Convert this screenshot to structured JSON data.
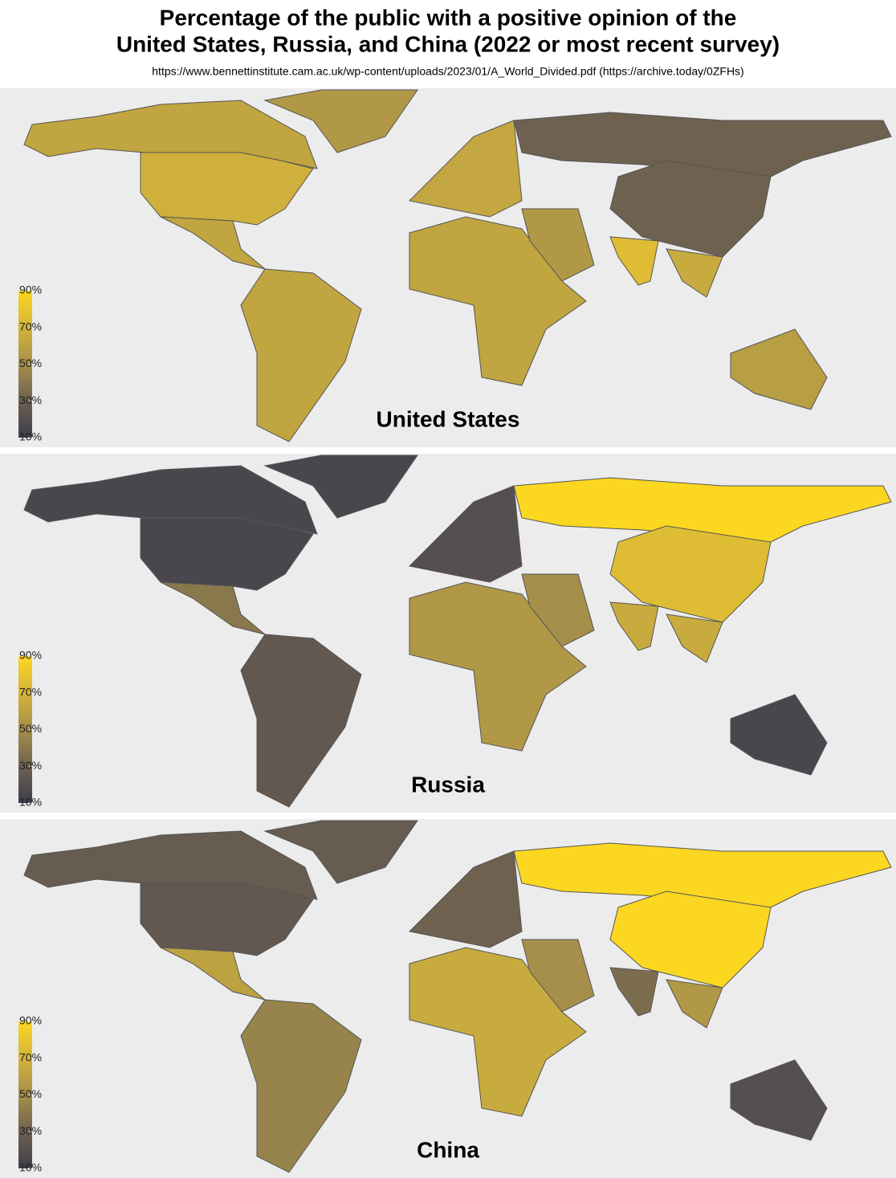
{
  "title": [
    "Percentage of the public with a positive opinion of the",
    "United States, Russia, and China (2022 or most recent survey)"
  ],
  "source": "https://www.bennettinstitute.cam.ac.uk/wp-content/uploads/2023/01/A_World_Divided.pdf (https://archive.today/0ZFHs)",
  "chart_data": [
    {
      "type": "choropleth",
      "title": "United States",
      "values": [
        62,
        68,
        62,
        62,
        55,
        63,
        62,
        55,
        30,
        30,
        75,
        65,
        58
      ],
      "clim": [
        10,
        90
      ],
      "colormap": [
        "#3e3d4d",
        "#6e6150",
        "#a58f4a",
        "#d4b43a",
        "#fbd721"
      ],
      "ticks": [
        {
          "value": 90,
          "label": "90%"
        },
        {
          "value": 70,
          "label": "70%"
        },
        {
          "value": 50,
          "label": "50%"
        },
        {
          "value": 30,
          "label": "30%"
        },
        {
          "value": 10,
          "label": "10%"
        }
      ]
    },
    {
      "type": "choropleth",
      "title": "Russia",
      "values": [
        15,
        15,
        40,
        25,
        15,
        20,
        55,
        50,
        90,
        75,
        65,
        65,
        15
      ],
      "clim": [
        10,
        90
      ],
      "colormap": [
        "#3e3d4d",
        "#6e6150",
        "#a58f4a",
        "#d4b43a",
        "#fbd721"
      ],
      "ticks": [
        {
          "value": 90,
          "label": "90%"
        },
        {
          "value": 70,
          "label": "70%"
        },
        {
          "value": 50,
          "label": "50%"
        },
        {
          "value": 30,
          "label": "30%"
        },
        {
          "value": 10,
          "label": "10%"
        }
      ]
    },
    {
      "type": "choropleth",
      "title": "China",
      "values": [
        27,
        25,
        60,
        45,
        27,
        30,
        65,
        50,
        90,
        90,
        35,
        55,
        20
      ],
      "clim": [
        10,
        90
      ],
      "colormap": [
        "#3e3d4d",
        "#6e6150",
        "#a58f4a",
        "#d4b43a",
        "#fbd721"
      ],
      "ticks": [
        {
          "value": 90,
          "label": "90%"
        },
        {
          "value": 70,
          "label": "70%"
        },
        {
          "value": 50,
          "label": "50%"
        },
        {
          "value": 30,
          "label": "30%"
        },
        {
          "value": 10,
          "label": "10%"
        }
      ]
    }
  ]
}
